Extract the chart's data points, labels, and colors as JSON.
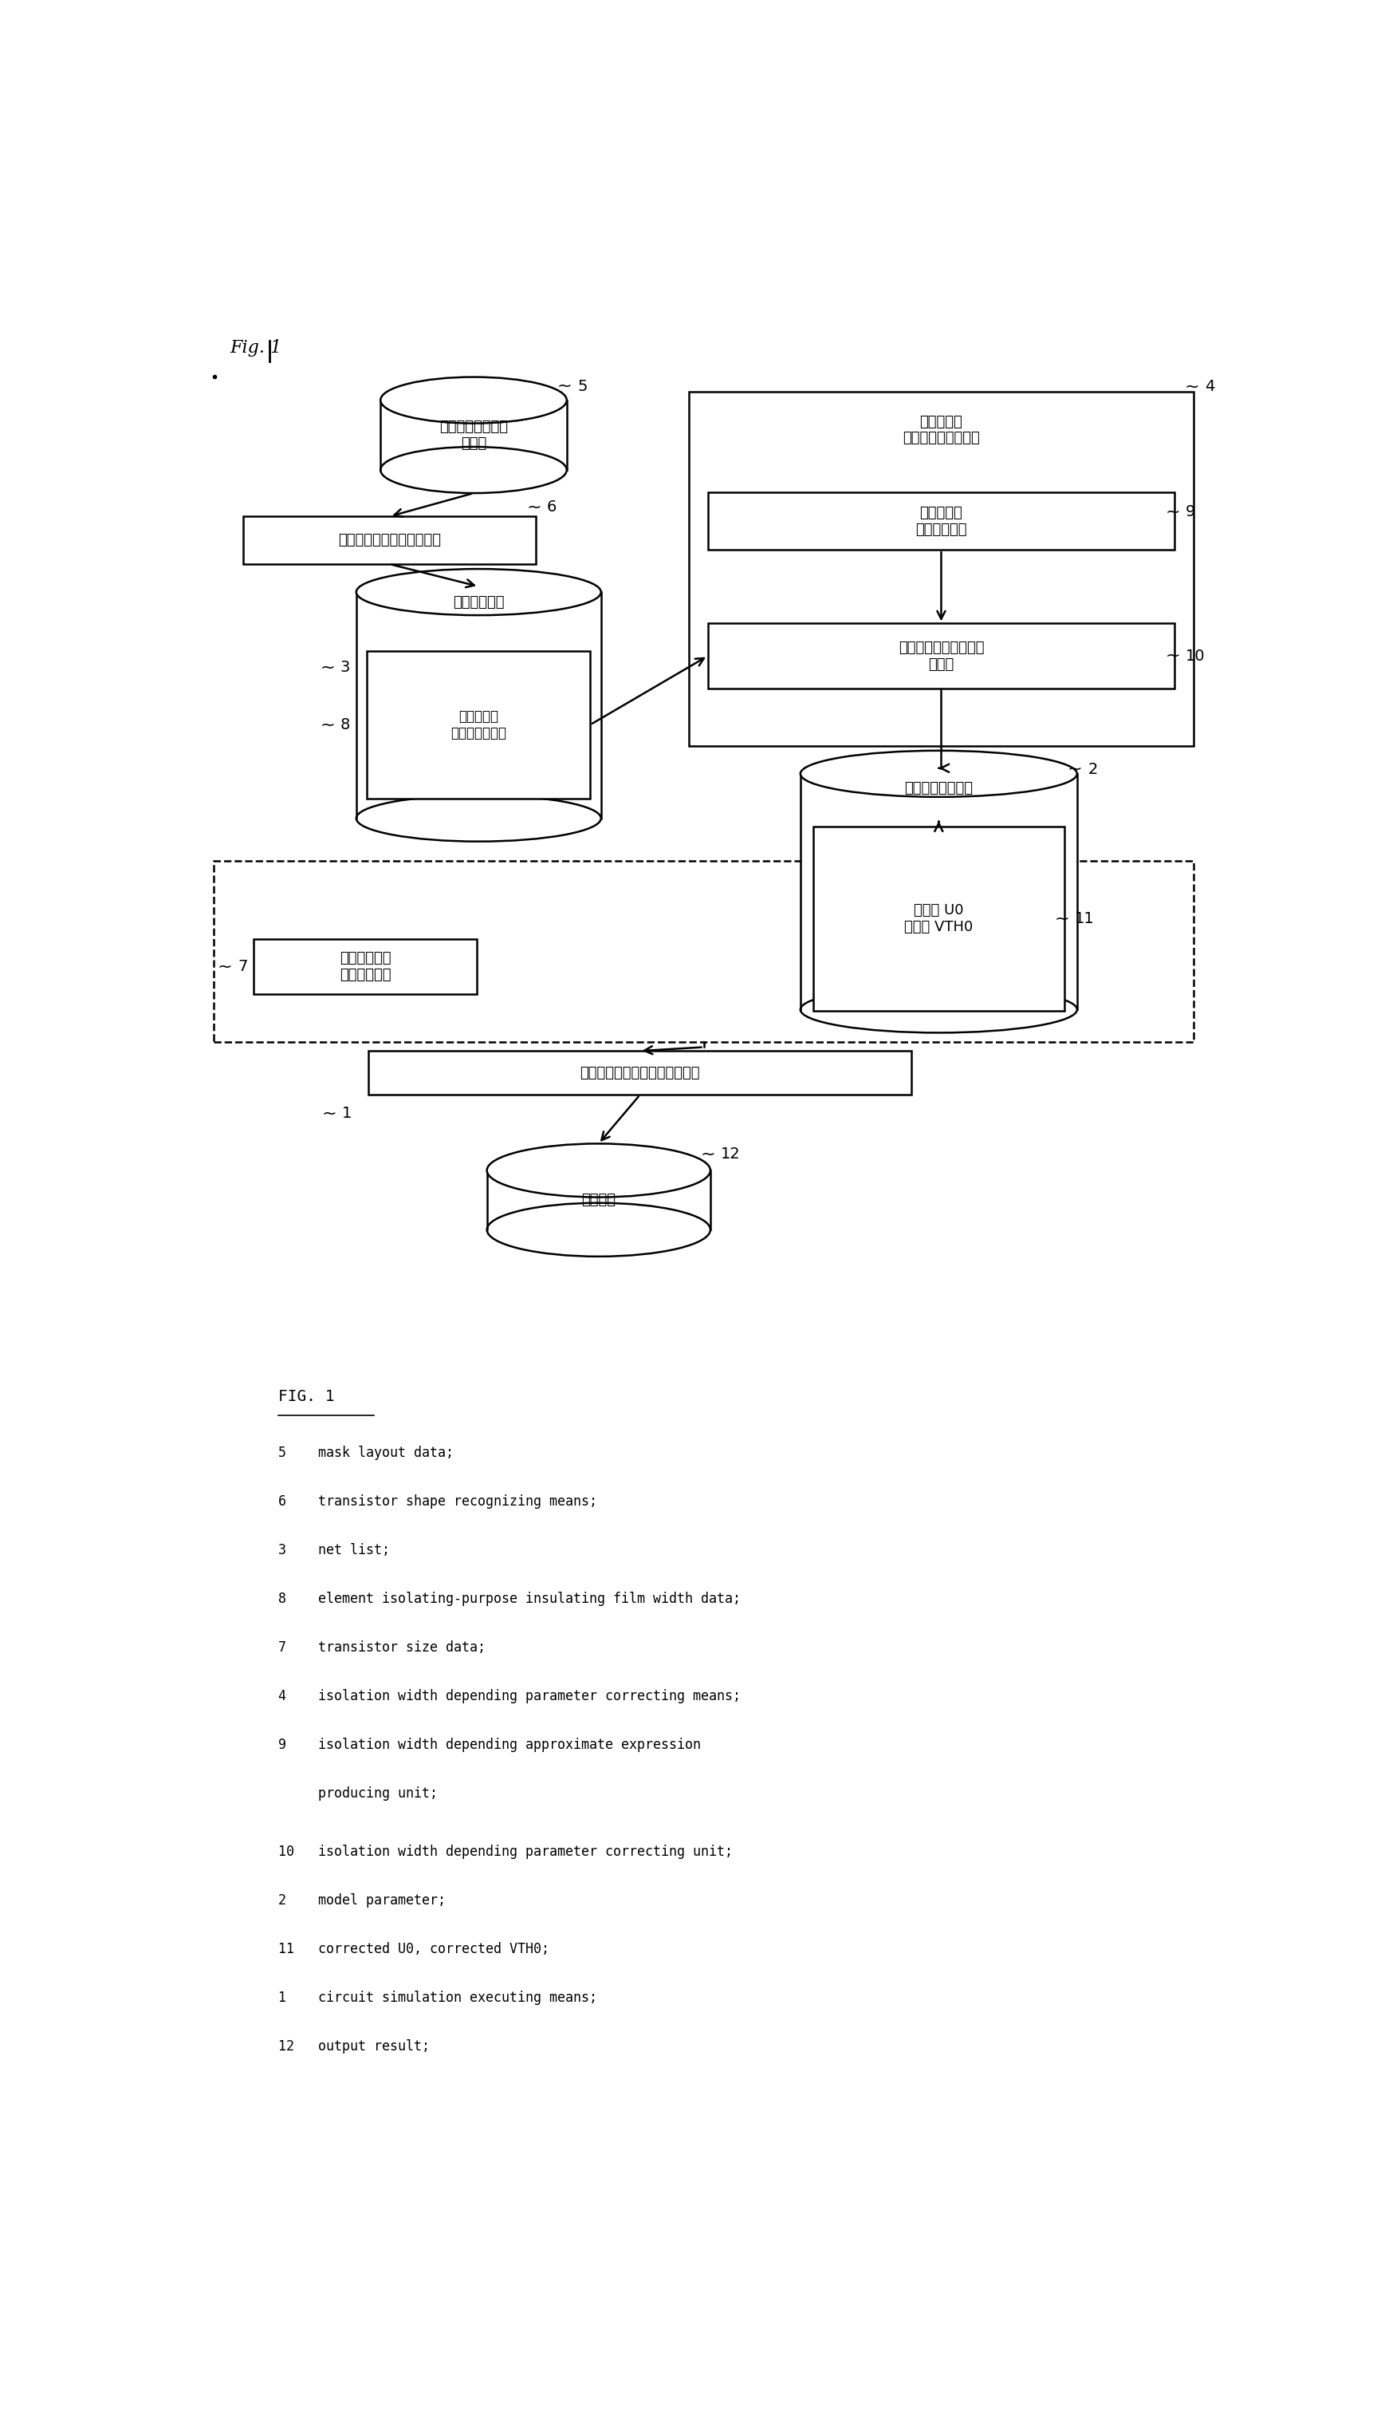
{
  "background": "#ffffff",
  "lc": "#000000",
  "lw": 1.8,
  "legend_title": "FIG. 1",
  "legend_entries": [
    {
      "num": "5",
      "text": "mask layout data;"
    },
    {
      "num": "6",
      "text": "transistor shape recognizing means;"
    },
    {
      "num": "3",
      "text": "net list;"
    },
    {
      "num": "8",
      "text": "element isolating-purpose insulating film width data;"
    },
    {
      "num": "7",
      "text": "transistor size data;"
    },
    {
      "num": "4",
      "text": "isolation width depending parameter correcting means;"
    },
    {
      "num": "9",
      "text": "isolation width depending approximate expression"
    },
    {
      "num": "",
      "text": "producing unit;"
    },
    {
      "num": "10",
      "text": "isolation width depending parameter correcting unit;"
    },
    {
      "num": "2",
      "text": "model parameter;"
    },
    {
      "num": "11",
      "text": "corrected U0, corrected VTH0;"
    },
    {
      "num": "1",
      "text": "circuit simulation executing means;"
    },
    {
      "num": "12",
      "text": "output result;"
    }
  ],
  "jp_labels": {
    "cyl5": "マスクレイアウト\nデータ",
    "box6": "トランジスタ形状認識手段",
    "netlist": "ネットリスト",
    "box8": "素子分離用\n絶縁膜幅データ",
    "box7": "トランジスタ\nサイズデータ",
    "bigbox4_top": "分離幅依存\nパラメータ補正手段",
    "box9": "分離幅依存\n近似式生成部",
    "box10": "分離幅依存パラメータ\n補正部",
    "model": "モデルパラメータ",
    "box11": "補正後 U0\n補正後 VTH0",
    "box1": "回路シミュレーション実行手段",
    "cyl12": "出力結果"
  }
}
